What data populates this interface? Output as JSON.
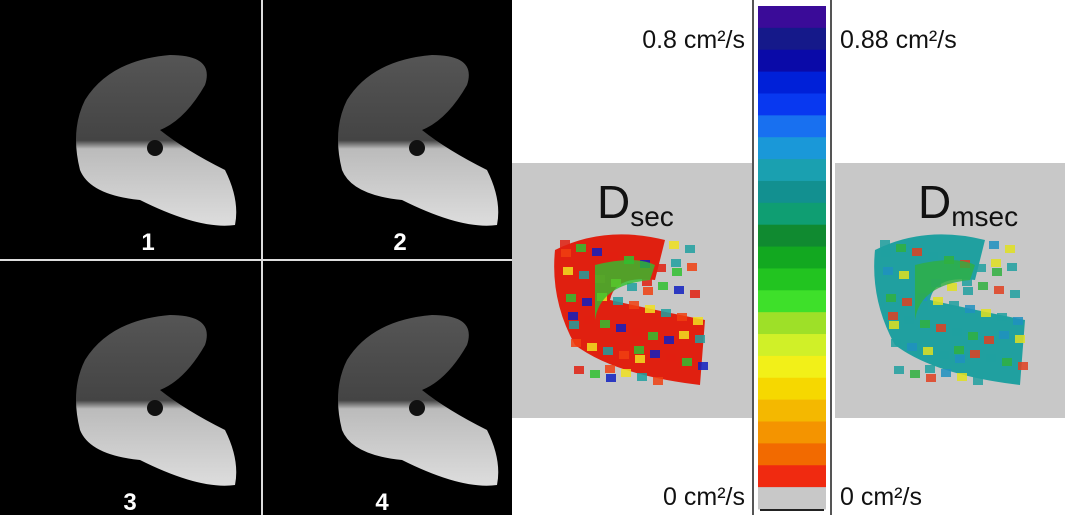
{
  "panels": [
    {
      "label": "1"
    },
    {
      "label": "2"
    },
    {
      "label": "3"
    },
    {
      "label": "4"
    }
  ],
  "maps": [
    {
      "symbol": "D",
      "subscript": "sec"
    },
    {
      "symbol": "D",
      "subscript": "msec"
    }
  ],
  "colorbar": {
    "left_top": "0.8 cm²/s",
    "right_top": "0.88 cm²/s",
    "left_bottom": "0 cm²/s",
    "right_bottom": "0 cm²/s"
  }
}
